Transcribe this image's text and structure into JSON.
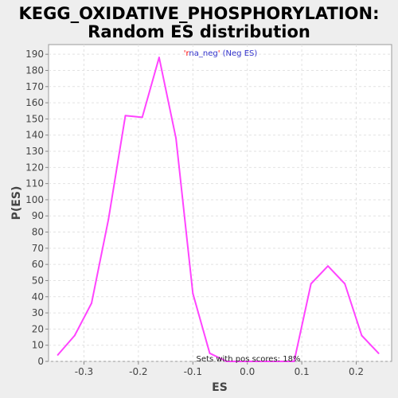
{
  "chart_data": {
    "type": "line",
    "title_line1": "KEGG_OXIDATIVE_PHOSPHORYLATION:",
    "title_line2": "Random ES distribution",
    "xlabel": "ES",
    "ylabel": "P(ES)",
    "xlim": [
      -0.365,
      0.265
    ],
    "ylim": [
      0,
      196
    ],
    "x_ticks": [
      -0.3,
      -0.2,
      -0.1,
      0.0,
      0.1,
      0.2
    ],
    "x_tick_labels": [
      "-0.3",
      "-0.2",
      "-0.1",
      "0.0",
      "0.1",
      "0.2"
    ],
    "y_ticks": [
      0,
      10,
      20,
      30,
      40,
      50,
      60,
      70,
      80,
      90,
      100,
      110,
      120,
      130,
      140,
      150,
      160,
      170,
      180,
      190
    ],
    "grid": true,
    "legend": {
      "quote_open": "'",
      "prefix": "r",
      "name": "na_neg",
      "quote_close": "'",
      "suffix": " (Neg ES)",
      "placement": "top-center"
    },
    "annotation": "Sets with pos scores: 18%",
    "line_color": "#ff44ff",
    "series": [
      {
        "x": [
          -0.348,
          -0.317,
          -0.286,
          -0.255,
          -0.224,
          -0.193,
          -0.162,
          -0.131,
          -0.1,
          -0.069,
          -0.038,
          -0.007,
          0.024,
          0.055,
          0.086,
          0.117,
          0.148,
          0.179,
          0.21,
          0.241
        ],
        "values": [
          4,
          16,
          36,
          88,
          152,
          151,
          188,
          138,
          42,
          5,
          0,
          0,
          0,
          0,
          0,
          48,
          59,
          48,
          16,
          5
        ]
      }
    ]
  }
}
